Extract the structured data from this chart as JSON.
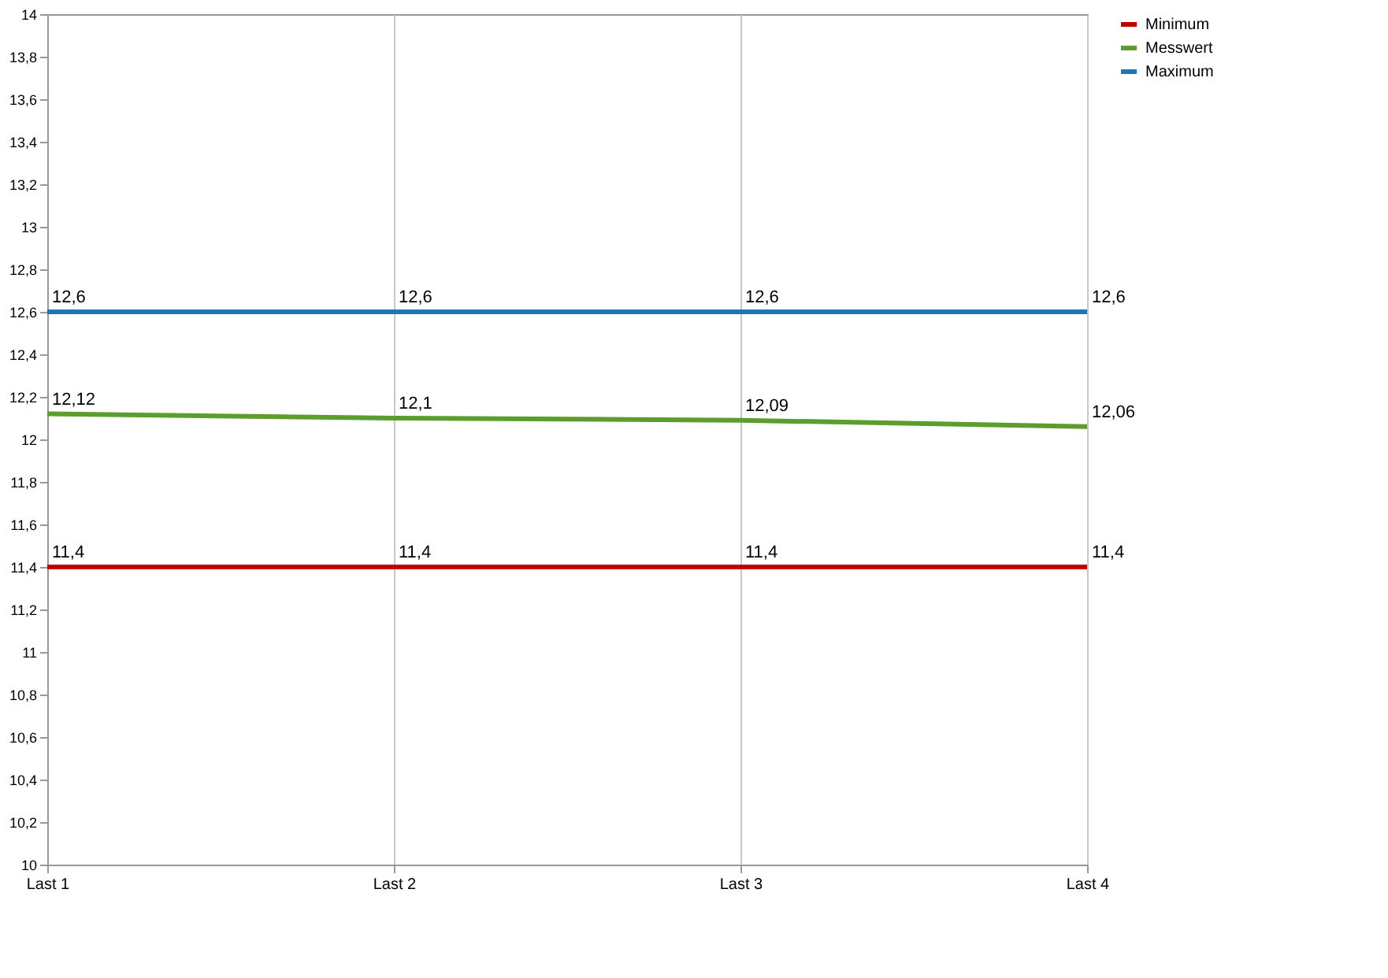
{
  "chart_data": {
    "type": "line",
    "categories": [
      "Last 1",
      "Last 2",
      "Last 3",
      "Last 4"
    ],
    "series": [
      {
        "name": "Minimum",
        "color": "#c00000",
        "values": [
          11.4,
          11.4,
          11.4,
          11.4
        ],
        "value_labels": [
          "11,4",
          "11,4",
          "11,4",
          "11,4"
        ]
      },
      {
        "name": "Messwert",
        "color": "#5b9e2d",
        "values": [
          12.12,
          12.1,
          12.09,
          12.06
        ],
        "value_labels": [
          "12,12",
          "12,1",
          "12,09",
          "12,06"
        ]
      },
      {
        "name": "Maximum",
        "color": "#1f77b4",
        "values": [
          12.6,
          12.6,
          12.6,
          12.6
        ],
        "value_labels": [
          "12,6",
          "12,6",
          "12,6",
          "12,6"
        ]
      }
    ],
    "ylim": [
      10,
      14
    ],
    "yticks": [
      {
        "value": 10,
        "label": "10"
      },
      {
        "value": 10.2,
        "label": "10,2"
      },
      {
        "value": 10.4,
        "label": "10,4"
      },
      {
        "value": 10.6,
        "label": "10,6"
      },
      {
        "value": 10.8,
        "label": "10,8"
      },
      {
        "value": 11,
        "label": "11"
      },
      {
        "value": 11.2,
        "label": "11,2"
      },
      {
        "value": 11.4,
        "label": "11,4"
      },
      {
        "value": 11.6,
        "label": "11,6"
      },
      {
        "value": 11.8,
        "label": "11,8"
      },
      {
        "value": 12,
        "label": "12"
      },
      {
        "value": 12.2,
        "label": "12,2"
      },
      {
        "value": 12.4,
        "label": "12,4"
      },
      {
        "value": 12.6,
        "label": "12,6"
      },
      {
        "value": 12.8,
        "label": "12,8"
      },
      {
        "value": 13,
        "label": "13"
      },
      {
        "value": 13.2,
        "label": "13,2"
      },
      {
        "value": 13.4,
        "label": "13,4"
      },
      {
        "value": 13.6,
        "label": "13,6"
      },
      {
        "value": 13.8,
        "label": "13,8"
      },
      {
        "value": 14,
        "label": "14"
      }
    ],
    "grid": "x",
    "legend": "right",
    "marker": "none",
    "line_style": "solid"
  }
}
